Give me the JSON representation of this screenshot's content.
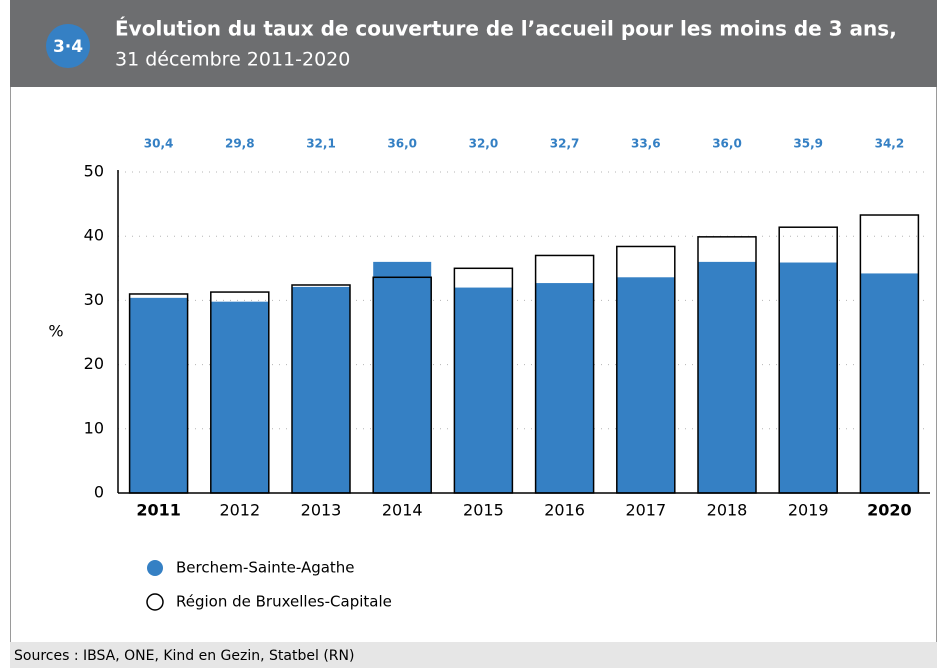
{
  "chart_data": {
    "type": "bar",
    "badge": "3·4",
    "title": "Évolution du taux de couverture de l’accueil pour les moins de 3 ans,",
    "subtitle": "31 décembre 2011-2020",
    "y_label": "%",
    "categories": [
      "2011",
      "2012",
      "2013",
      "2014",
      "2015",
      "2016",
      "2017",
      "2018",
      "2019",
      "2020"
    ],
    "bold_category_indices": [
      0,
      9
    ],
    "series": [
      {
        "name": "Berchem-Sainte-Agathe",
        "color": "#3580c4",
        "style": "filled",
        "values": [
          30.4,
          29.8,
          32.1,
          36.0,
          32.0,
          32.7,
          33.6,
          36.0,
          35.9,
          34.2
        ],
        "value_labels": [
          "30,4",
          "29,8",
          "32,1",
          "36,0",
          "32,0",
          "32,7",
          "33,6",
          "36,0",
          "35,9",
          "34,2"
        ]
      },
      {
        "name": "Région de Bruxelles-Capitale",
        "color": "#000000",
        "style": "outline",
        "values": [
          31.0,
          31.3,
          32.4,
          33.6,
          35.0,
          37.0,
          38.4,
          39.9,
          41.4,
          43.3
        ]
      }
    ],
    "ylim": [
      0,
      50
    ],
    "yticks": [
      0,
      10,
      20,
      30,
      40,
      50
    ],
    "grid": true,
    "source": "Sources : IBSA, ONE, Kind en Gezin, Statbel (RN)"
  }
}
